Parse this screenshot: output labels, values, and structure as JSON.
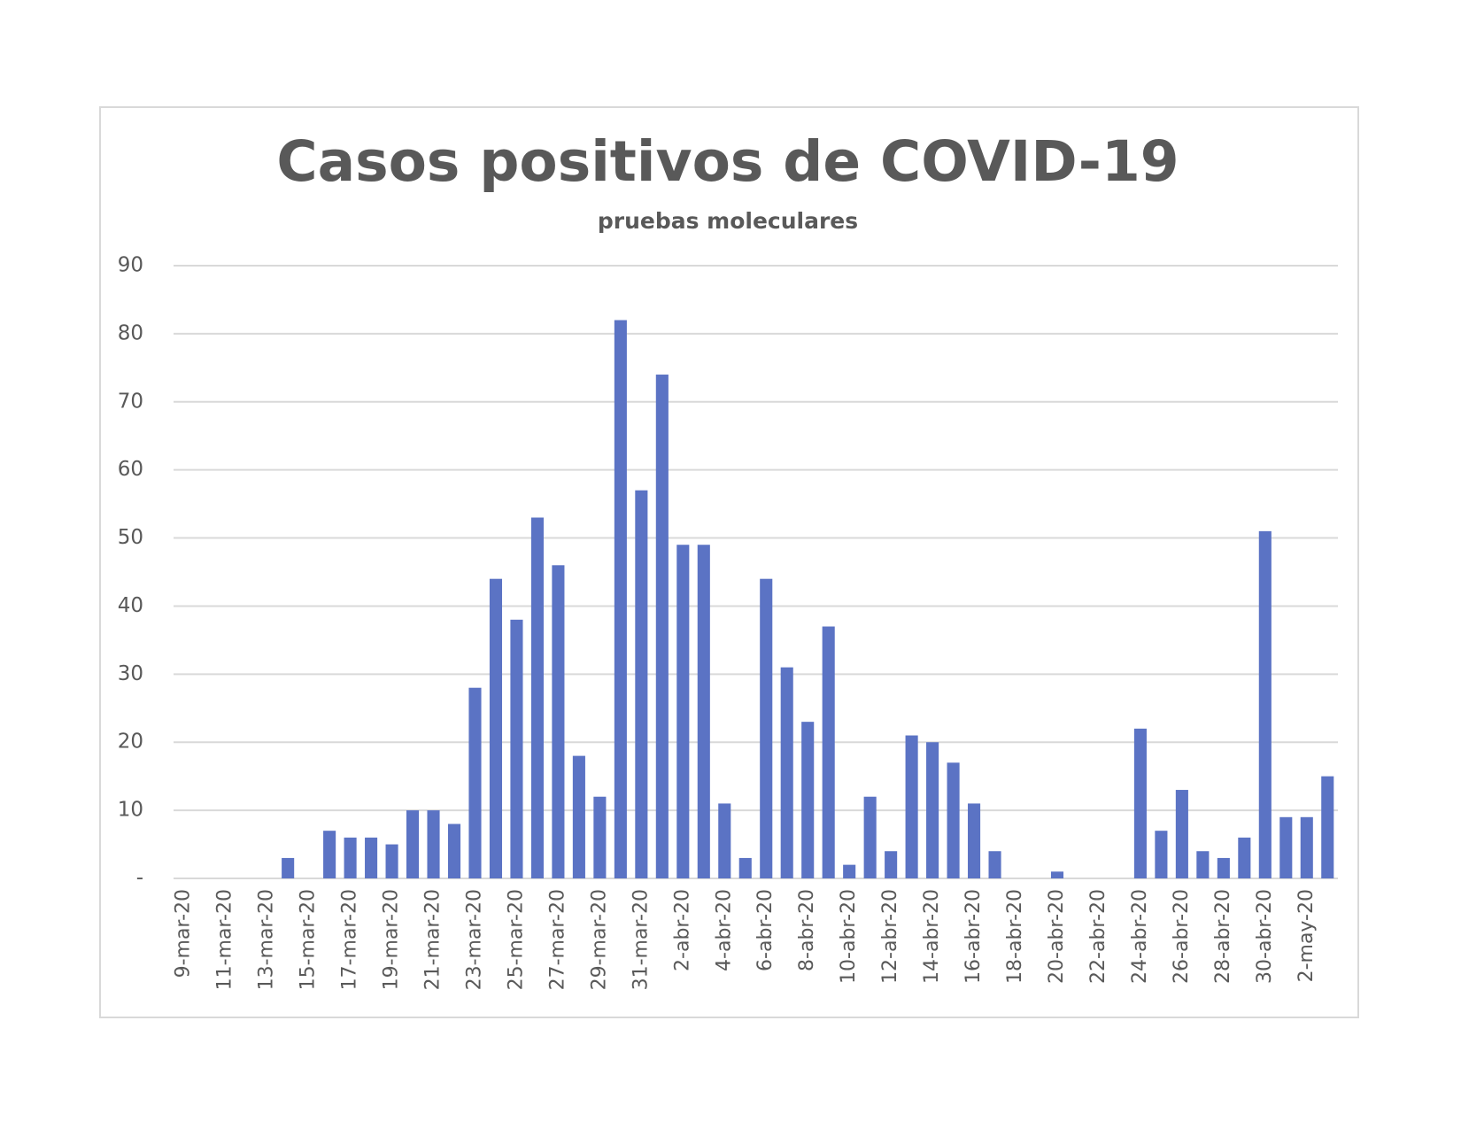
{
  "chart_data": {
    "type": "bar",
    "title": "Casos positivos de COVID-19",
    "subtitle": "pruebas moleculares",
    "categories": [
      "9-mar-20",
      null,
      "11-mar-20",
      null,
      "13-mar-20",
      null,
      "15-mar-20",
      null,
      "17-mar-20",
      null,
      "19-mar-20",
      null,
      "21-mar-20",
      null,
      "23-mar-20",
      null,
      "25-mar-20",
      null,
      "27-mar-20",
      null,
      "29-mar-20",
      null,
      "31-mar-20",
      null,
      "2-abr-20",
      null,
      "4-abr-20",
      null,
      "6-abr-20",
      null,
      "8-abr-20",
      null,
      "10-abr-20",
      null,
      "12-abr-20",
      null,
      "14-abr-20",
      null,
      "16-abr-20",
      null,
      "18-abr-20",
      null,
      "20-abr-20",
      null,
      "22-abr-20",
      null,
      "24-abr-20",
      null,
      "26-abr-20",
      null,
      "28-abr-20",
      null,
      "30-abr-20",
      null,
      "2-may-20",
      null
    ],
    "values": [
      0,
      0,
      0,
      0,
      0,
      3,
      0,
      7,
      6,
      6,
      5,
      10,
      10,
      8,
      28,
      44,
      38,
      53,
      46,
      18,
      12,
      82,
      57,
      74,
      49,
      49,
      11,
      3,
      44,
      31,
      23,
      37,
      2,
      12,
      4,
      21,
      20,
      17,
      11,
      4,
      0,
      0,
      1,
      0,
      0,
      0,
      22,
      7,
      13,
      4,
      3,
      6,
      51,
      9,
      9,
      15
    ],
    "color": "#5b73c4",
    "ylim": [
      0,
      90
    ],
    "yticks": [
      {
        "value": 0,
        "label": "-"
      },
      10,
      20,
      30,
      40,
      50,
      60,
      70,
      80,
      90
    ],
    "grid": true
  }
}
